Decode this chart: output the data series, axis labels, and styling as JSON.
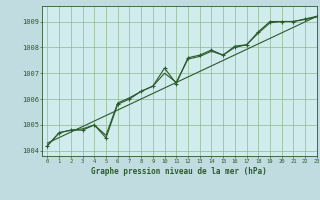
{
  "title": "Graphe pression niveau de la mer (hPa)",
  "background_color": "#c0dce0",
  "plot_bg_color": "#d0ecec",
  "grid_color": "#90b890",
  "line_color": "#2d5a2d",
  "xlim": [
    -0.5,
    23
  ],
  "ylim": [
    1003.8,
    1009.6
  ],
  "yticks": [
    1004,
    1005,
    1006,
    1007,
    1008,
    1009
  ],
  "xticks": [
    0,
    1,
    2,
    3,
    4,
    5,
    6,
    7,
    8,
    9,
    10,
    11,
    12,
    13,
    14,
    15,
    16,
    17,
    18,
    19,
    20,
    21,
    22,
    23
  ],
  "hours": [
    0,
    1,
    2,
    3,
    4,
    5,
    6,
    7,
    8,
    9,
    10,
    11,
    12,
    13,
    14,
    15,
    16,
    17,
    18,
    19,
    20,
    21,
    22,
    23
  ],
  "pressure_main": [
    1004.2,
    1004.7,
    1004.8,
    1004.8,
    1005.0,
    1004.5,
    1005.8,
    1006.0,
    1006.3,
    1006.5,
    1007.2,
    1006.6,
    1007.6,
    1007.7,
    1007.9,
    1007.7,
    1008.0,
    1008.1,
    1008.6,
    1009.0,
    1009.0,
    1009.0,
    1009.1,
    1009.2
  ],
  "pressure_smooth": [
    1004.2,
    1004.7,
    1004.8,
    1004.85,
    1005.0,
    1004.6,
    1005.85,
    1006.05,
    1006.3,
    1006.5,
    1007.0,
    1006.65,
    1007.55,
    1007.65,
    1007.85,
    1007.7,
    1008.05,
    1008.1,
    1008.55,
    1008.95,
    1009.0,
    1009.0,
    1009.08,
    1009.18
  ],
  "trend_x": [
    0,
    23
  ],
  "trend_y": [
    1004.3,
    1009.2
  ]
}
